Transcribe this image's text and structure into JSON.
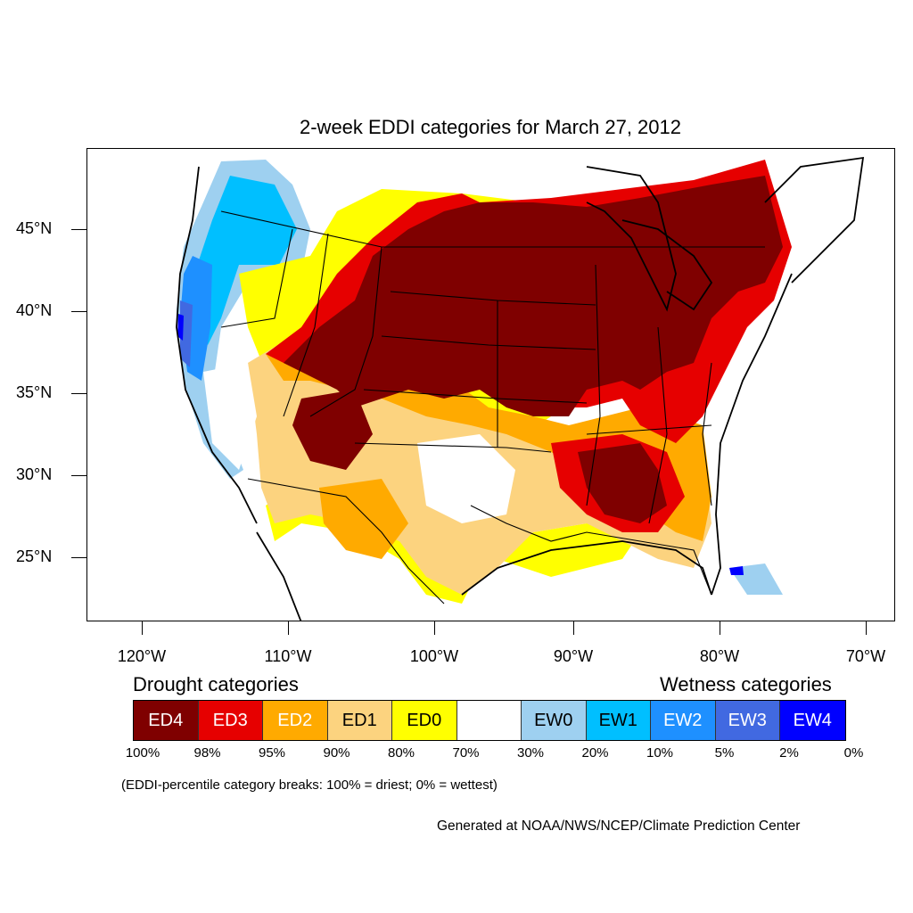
{
  "title": "2-week EDDI categories for March 27, 2012",
  "axes": {
    "lat_labels": [
      "45°N",
      "40°N",
      "35°N",
      "30°N",
      "25°N"
    ],
    "lon_labels": [
      "120°W",
      "110°W",
      "100°W",
      "90°W",
      "80°W",
      "70°W"
    ]
  },
  "legend": {
    "drought_heading": "Drought categories",
    "wetness_heading": "Wetness categories",
    "categories": [
      {
        "label": "ED4",
        "color": "#7f0000",
        "text_color": "#ffffff"
      },
      {
        "label": "ED3",
        "color": "#e60000",
        "text_color": "#ffffff"
      },
      {
        "label": "ED2",
        "color": "#ffaa00",
        "text_color": "#ffffff"
      },
      {
        "label": "ED1",
        "color": "#fcd37f",
        "text_color": "#000000"
      },
      {
        "label": "ED0",
        "color": "#ffff00",
        "text_color": "#000000"
      },
      {
        "label": "",
        "color": "#ffffff",
        "text_color": "#000000"
      },
      {
        "label": "EW0",
        "color": "#9ed0f0",
        "text_color": "#000000"
      },
      {
        "label": "EW1",
        "color": "#00bfff",
        "text_color": "#000000"
      },
      {
        "label": "EW2",
        "color": "#1e90ff",
        "text_color": "#ffffff"
      },
      {
        "label": "EW3",
        "color": "#4169e1",
        "text_color": "#ffffff"
      },
      {
        "label": "EW4",
        "color": "#0000ff",
        "text_color": "#ffffff"
      }
    ],
    "breaks": [
      "100%",
      "98%",
      "95%",
      "90%",
      "80%",
      "70%",
      "30%",
      "20%",
      "10%",
      "5%",
      "2%",
      "0%"
    ]
  },
  "note": "(EDDI-percentile category breaks: 100% = driest; 0% = wettest)",
  "credit": "Generated at NOAA/NWS/NCEP/Climate Prediction Center"
}
